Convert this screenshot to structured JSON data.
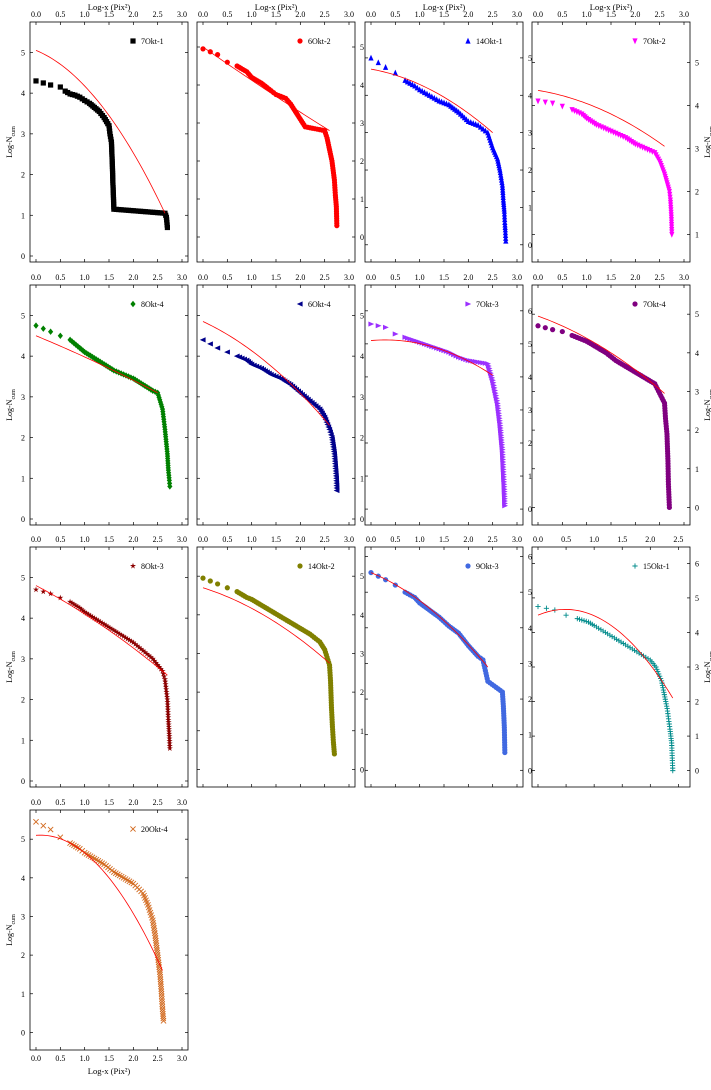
{
  "figure": {
    "top_axis_label": "Log-x (Pix²)",
    "bottom_axis_label": "Log-x (Pix²)",
    "y_axis_label_base": "Log-N",
    "y_axis_label_sub": "cum"
  },
  "chart_data": [
    {
      "type": "scatter",
      "title": "7Okt-1",
      "marker": "square",
      "color": "#000000",
      "xlim": [
        0,
        3
      ],
      "ylim": [
        0,
        5.6
      ],
      "yticks": [
        0,
        1,
        2,
        3,
        4,
        5
      ],
      "xticks": [
        0,
        0.5,
        1,
        1.5,
        2,
        2.5,
        3
      ],
      "ylabel": "Log-N",
      "ylabel_sub": "cum",
      "xlabel": "Log-x (Pix²)",
      "fit_color": "#ff0000",
      "fit": [
        [
          0,
          5.05
        ],
        [
          1.5,
          3.45
        ],
        [
          2.65,
          1.05
        ]
      ],
      "legend": "top-right",
      "x": [
        0,
        0.3,
        0.5,
        0.6,
        0.7,
        0.8,
        0.9,
        1.0,
        1.1,
        1.2,
        1.3,
        1.4,
        1.45,
        1.5,
        1.52,
        1.55,
        1.56,
        1.57,
        1.58,
        1.59,
        1.6,
        2.65,
        2.68,
        2.7
      ],
      "y": [
        4.3,
        4.2,
        4.15,
        4.05,
        3.98,
        3.95,
        3.9,
        3.82,
        3.75,
        3.65,
        3.55,
        3.4,
        3.3,
        3.2,
        3.0,
        2.8,
        2.5,
        2.2,
        1.8,
        1.5,
        1.15,
        1.05,
        0.95,
        0.7
      ]
    },
    {
      "type": "scatter",
      "title": "6Okt-2",
      "marker": "circle",
      "color": "#ff0000",
      "xlim": [
        0,
        3
      ],
      "ylim": [
        -0.5,
        5.5
      ],
      "yticks": [
        0,
        1,
        2,
        3,
        4,
        5
      ],
      "xticks": [
        0,
        0.5,
        1,
        1.5,
        2,
        2.5,
        3
      ],
      "ylabel": "",
      "xlabel": "Log-x (Pix²)",
      "fit_color": "#ff0000",
      "fit": [
        [
          0,
          5.0
        ],
        [
          1.5,
          3.7
        ],
        [
          2.6,
          2.8
        ]
      ],
      "legend": "top-right",
      "x": [
        0,
        0.3,
        0.5,
        0.7,
        0.9,
        1.0,
        1.2,
        1.4,
        1.5,
        1.6,
        1.7,
        1.8,
        1.9,
        2.0,
        2.05,
        2.1,
        2.5,
        2.55,
        2.6,
        2.65,
        2.7,
        2.72,
        2.74,
        2.75
      ],
      "y": [
        4.95,
        4.8,
        4.6,
        4.5,
        4.35,
        4.2,
        4.05,
        3.85,
        3.75,
        3.7,
        3.65,
        3.5,
        3.3,
        3.1,
        3.0,
        2.9,
        2.8,
        2.6,
        2.3,
        2.0,
        1.5,
        1.1,
        0.8,
        0.3
      ]
    },
    {
      "type": "scatter",
      "title": "14Okt-1",
      "marker": "triangle-up",
      "color": "#0000ff",
      "xlim": [
        0,
        3
      ],
      "ylim": [
        -0.3,
        5.8
      ],
      "yticks": [
        0,
        1,
        2,
        3,
        4,
        5
      ],
      "xticks": [
        0,
        0.5,
        1,
        1.5,
        2,
        2.5,
        3
      ],
      "ylabel": "",
      "xlabel": "Log-x (Pix²)",
      "fit_color": "#ff0000",
      "fit": [
        [
          0,
          4.7
        ],
        [
          1.5,
          3.95
        ],
        [
          2.5,
          3.0
        ]
      ],
      "legend": "top-right",
      "x": [
        0,
        0.3,
        0.5,
        0.7,
        0.9,
        1.0,
        1.2,
        1.4,
        1.6,
        1.8,
        2.0,
        2.2,
        2.3,
        2.4,
        2.5,
        2.6,
        2.65,
        2.7,
        2.72,
        2.74,
        2.75,
        2.76,
        2.77
      ],
      "y": [
        5.0,
        4.75,
        4.6,
        4.4,
        4.25,
        4.15,
        4.0,
        3.85,
        3.75,
        3.55,
        3.3,
        3.2,
        3.1,
        3.0,
        2.6,
        2.3,
        2.0,
        1.6,
        1.2,
        0.9,
        0.6,
        0.4,
        0.1
      ]
    },
    {
      "type": "scatter",
      "title": "7Okt-2",
      "marker": "triangle-down",
      "color": "#ff00ff",
      "xlim": [
        0,
        3
      ],
      "ylim": [
        0.5,
        5.8
      ],
      "yticks": [
        1,
        2,
        3,
        4,
        5
      ],
      "xticks": [
        0,
        0.5,
        1,
        1.5,
        2,
        2.5,
        3
      ],
      "ylabel": "Log-N",
      "ylabel_sub": "cum",
      "xlabel": "Log-x (Pix²)",
      "fit_color": "#ff0000",
      "fit": [
        [
          0,
          4.35
        ],
        [
          1.5,
          3.8
        ],
        [
          2.6,
          3.05
        ]
      ],
      "legend": "top-right",
      "x": [
        0,
        0.3,
        0.5,
        0.7,
        0.9,
        1.0,
        1.2,
        1.4,
        1.6,
        1.8,
        2.0,
        2.2,
        2.4,
        2.5,
        2.6,
        2.65,
        2.7,
        2.72,
        2.74,
        2.75
      ],
      "y": [
        4.1,
        4.05,
        3.98,
        3.9,
        3.8,
        3.7,
        3.55,
        3.45,
        3.35,
        3.25,
        3.1,
        3.0,
        2.9,
        2.7,
        2.4,
        2.2,
        2.0,
        1.8,
        1.4,
        1.0
      ]
    },
    {
      "type": "scatter",
      "title": "8Okt-4",
      "marker": "diamond",
      "color": "#008000",
      "xlim": [
        0,
        3
      ],
      "ylim": [
        0,
        5.6
      ],
      "yticks": [
        0,
        1,
        2,
        3,
        4,
        5
      ],
      "xticks": [
        0,
        0.5,
        1,
        1.5,
        2,
        2.5,
        3
      ],
      "ylabel": "Log-N",
      "ylabel_sub": "cum",
      "xlabel": "",
      "fit_color": "#ff0000",
      "fit": [
        [
          0,
          4.5
        ],
        [
          1.5,
          3.7
        ],
        [
          2.5,
          3.1
        ]
      ],
      "legend": "top-right",
      "x": [
        0,
        0.3,
        0.5,
        0.7,
        0.9,
        1.0,
        1.2,
        1.4,
        1.6,
        1.8,
        2.0,
        2.2,
        2.4,
        2.5,
        2.6,
        2.65,
        2.7,
        2.72,
        2.74,
        2.75
      ],
      "y": [
        4.75,
        4.6,
        4.5,
        4.4,
        4.2,
        4.1,
        3.95,
        3.8,
        3.65,
        3.55,
        3.45,
        3.3,
        3.15,
        3.1,
        2.7,
        2.2,
        1.6,
        1.2,
        0.95,
        0.8
      ]
    },
    {
      "type": "scatter",
      "title": "6Okt-4",
      "marker": "triangle-left",
      "color": "#00008b",
      "xlim": [
        0,
        3
      ],
      "ylim": [
        0,
        5.6
      ],
      "yticks": [
        0,
        1,
        2,
        3,
        4,
        5
      ],
      "xticks": [
        0,
        0.5,
        1,
        1.5,
        2,
        2.5,
        3
      ],
      "ylabel": "",
      "xlabel": "",
      "fit_color": "#ff0000",
      "fit": [
        [
          0,
          4.85
        ],
        [
          1.5,
          3.65
        ],
        [
          2.6,
          2.3
        ]
      ],
      "legend": "top-right",
      "x": [
        0,
        0.3,
        0.5,
        0.7,
        0.9,
        1.0,
        1.2,
        1.4,
        1.6,
        1.8,
        2.0,
        2.2,
        2.4,
        2.5,
        2.6,
        2.65,
        2.7,
        2.72,
        2.74,
        2.75
      ],
      "y": [
        4.4,
        4.2,
        4.1,
        4.0,
        3.9,
        3.8,
        3.7,
        3.55,
        3.45,
        3.3,
        3.1,
        2.9,
        2.7,
        2.5,
        2.2,
        2.0,
        1.6,
        1.3,
        1.0,
        0.7
      ]
    },
    {
      "type": "scatter",
      "title": "7Okt-3",
      "marker": "triangle-right",
      "color": "#9b30ff",
      "xlim": [
        0,
        3
      ],
      "ylim": [
        -0.3,
        6.6
      ],
      "yticks": [
        0,
        1,
        2,
        3,
        4,
        5,
        6
      ],
      "xticks": [
        0,
        0.5,
        1,
        1.5,
        2,
        2.5,
        3
      ],
      "ylabel": "",
      "xlabel": "",
      "fit_color": "#ff0000",
      "fit": [
        [
          0,
          5.1
        ],
        [
          1.5,
          4.8
        ],
        [
          2.5,
          4.05
        ]
      ],
      "legend": "top-right",
      "x": [
        0,
        0.3,
        0.5,
        0.7,
        0.9,
        1.0,
        1.2,
        1.4,
        1.6,
        1.8,
        2.0,
        2.2,
        2.4,
        2.5,
        2.6,
        2.65,
        2.7,
        2.72,
        2.74,
        2.75
      ],
      "y": [
        5.6,
        5.5,
        5.3,
        5.2,
        5.1,
        5.05,
        4.95,
        4.85,
        4.75,
        4.6,
        4.5,
        4.45,
        4.4,
        3.9,
        3.2,
        2.6,
        1.8,
        1.2,
        0.6,
        0.1
      ]
    },
    {
      "type": "scatter",
      "title": "7Okt-4",
      "marker": "circle",
      "color": "#800080",
      "xlim": [
        0,
        3
      ],
      "ylim": [
        -0.3,
        5.6
      ],
      "yticks": [
        0,
        1,
        2,
        3,
        4,
        5
      ],
      "xticks": [
        0,
        0.5,
        1,
        1.5,
        2,
        2.5,
        3
      ],
      "ylabel": "Log-N",
      "ylabel_sub": "cum",
      "xlabel": "",
      "fit_color": "#ff0000",
      "fit": [
        [
          0,
          4.95
        ],
        [
          1.5,
          4.0
        ],
        [
          2.6,
          2.95
        ]
      ],
      "legend": "top-right",
      "x": [
        0,
        0.3,
        0.5,
        0.7,
        0.9,
        1.0,
        1.2,
        1.4,
        1.6,
        1.8,
        2.0,
        2.2,
        2.4,
        2.5,
        2.6,
        2.62,
        2.65,
        2.67,
        2.68,
        2.7
      ],
      "y": [
        4.7,
        4.6,
        4.55,
        4.45,
        4.35,
        4.3,
        4.15,
        4.0,
        3.8,
        3.65,
        3.5,
        3.35,
        3.2,
        2.95,
        2.7,
        2.3,
        1.9,
        1.2,
        0.6,
        0.0
      ]
    },
    {
      "type": "scatter",
      "title": "8Okt-3",
      "marker": "star",
      "color": "#8b0000",
      "xlim": [
        0,
        3
      ],
      "ylim": [
        0,
        5.6
      ],
      "yticks": [
        0,
        1,
        2,
        3,
        4,
        5
      ],
      "xticks": [
        0,
        0.5,
        1,
        1.5,
        2,
        2.5,
        3
      ],
      "ylabel": "Log-N",
      "ylabel_sub": "cum",
      "xlabel": "",
      "fit_color": "#ff0000",
      "fit": [
        [
          0,
          4.8
        ],
        [
          1.5,
          3.7
        ],
        [
          2.7,
          2.6
        ]
      ],
      "legend": "top-right",
      "x": [
        0,
        0.3,
        0.5,
        0.7,
        0.9,
        1.0,
        1.2,
        1.4,
        1.6,
        1.8,
        2.0,
        2.2,
        2.4,
        2.5,
        2.6,
        2.65,
        2.7,
        2.72,
        2.74,
        2.75
      ],
      "y": [
        4.7,
        4.6,
        4.5,
        4.4,
        4.25,
        4.15,
        4.0,
        3.85,
        3.7,
        3.55,
        3.4,
        3.2,
        3.0,
        2.85,
        2.7,
        2.5,
        2.0,
        1.5,
        1.1,
        0.8
      ]
    },
    {
      "type": "scatter",
      "title": "14Okt-2",
      "marker": "circle",
      "color": "#808000",
      "xlim": [
        0,
        3
      ],
      "ylim": [
        -0.3,
        5.6
      ],
      "yticks": [
        0,
        1,
        2,
        3,
        4,
        5
      ],
      "xticks": [
        0,
        0.5,
        1,
        1.5,
        2,
        2.5,
        3
      ],
      "ylabel": "",
      "xlabel": "",
      "fit_color": "#ff0000",
      "fit": [
        [
          0,
          4.7
        ],
        [
          1.5,
          3.8
        ],
        [
          2.6,
          2.75
        ]
      ],
      "legend": "top-right",
      "x": [
        0,
        0.3,
        0.5,
        0.7,
        0.9,
        1.0,
        1.2,
        1.4,
        1.6,
        1.8,
        2.0,
        2.2,
        2.4,
        2.5,
        2.6,
        2.62,
        2.64,
        2.66,
        2.68,
        2.7
      ],
      "y": [
        4.95,
        4.8,
        4.7,
        4.6,
        4.45,
        4.4,
        4.25,
        4.1,
        3.95,
        3.8,
        3.65,
        3.5,
        3.3,
        3.1,
        2.7,
        2.3,
        1.6,
        1.1,
        0.7,
        0.4
      ]
    },
    {
      "type": "scatter",
      "title": "9Okt-3",
      "marker": "circle",
      "color": "#4169e1",
      "xlim": [
        0,
        3
      ],
      "ylim": [
        -0.3,
        6.1
      ],
      "yticks": [
        0,
        1,
        2,
        3,
        4,
        5,
        6
      ],
      "xticks": [
        0,
        0.5,
        1,
        1.5,
        2,
        2.5,
        3
      ],
      "ylabel": "",
      "xlabel": "",
      "fit_color": "#ff0000",
      "fit": [
        [
          0,
          5.55
        ],
        [
          1.5,
          4.2
        ],
        [
          2.4,
          2.9
        ]
      ],
      "legend": "top-right",
      "x": [
        0,
        0.3,
        0.5,
        0.7,
        0.9,
        1.0,
        1.2,
        1.4,
        1.6,
        1.8,
        2.0,
        2.2,
        2.3,
        2.35,
        2.4,
        2.7,
        2.72,
        2.74,
        2.75
      ],
      "y": [
        5.55,
        5.35,
        5.2,
        5.0,
        4.85,
        4.7,
        4.5,
        4.3,
        4.05,
        3.85,
        3.5,
        3.2,
        3.1,
        2.8,
        2.5,
        2.2,
        1.8,
        1.2,
        0.5
      ]
    },
    {
      "type": "scatter",
      "title": "15Okt-1",
      "marker": "plus",
      "color": "#008b8b",
      "xlim": [
        0,
        2.6
      ],
      "ylim": [
        -0.3,
        6.3
      ],
      "yticks": [
        0,
        1,
        2,
        3,
        4,
        5,
        6
      ],
      "xticks": [
        0,
        0.5,
        1,
        1.5,
        2,
        2.5
      ],
      "ylabel": "Log-N",
      "ylabel_sub": "cum",
      "xlabel": "",
      "fit_color": "#ff0000",
      "fit": [
        [
          0,
          4.5
        ],
        [
          1.6,
          3.8
        ],
        [
          2.4,
          2.1
        ]
      ],
      "legend": "top-right",
      "x": [
        0,
        0.3,
        0.5,
        0.7,
        0.9,
        1.0,
        1.2,
        1.4,
        1.6,
        1.8,
        2.0,
        2.1,
        2.2,
        2.25,
        2.3,
        2.35,
        2.38,
        2.4
      ],
      "y": [
        4.75,
        4.65,
        4.5,
        4.4,
        4.3,
        4.2,
        4.0,
        3.8,
        3.6,
        3.4,
        3.2,
        3.0,
        2.6,
        2.2,
        1.8,
        1.2,
        0.8,
        0.0
      ]
    },
    {
      "type": "scatter",
      "title": "20Okt-4",
      "marker": "cross",
      "color": "#d2691e",
      "xlim": [
        0,
        3
      ],
      "ylim": [
        -0.3,
        5.6
      ],
      "yticks": [
        0,
        1,
        2,
        3,
        4,
        5
      ],
      "xticks": [
        0,
        0.5,
        1,
        1.5,
        2,
        2.5,
        3
      ],
      "ylabel": "Log-N",
      "ylabel_sub": "cum",
      "xlabel": "Log-x (Pix²)",
      "fit_color": "#ff0000",
      "fit": [
        [
          0,
          5.1
        ],
        [
          1.5,
          4.0
        ],
        [
          2.6,
          1.6
        ]
      ],
      "legend": "top-right",
      "x": [
        0,
        0.3,
        0.5,
        0.7,
        0.9,
        1.0,
        1.2,
        1.4,
        1.6,
        1.8,
        2.0,
        2.2,
        2.3,
        2.4,
        2.45,
        2.5,
        2.55,
        2.58,
        2.6,
        2.62
      ],
      "y": [
        5.45,
        5.25,
        5.05,
        4.9,
        4.75,
        4.65,
        4.5,
        4.35,
        4.15,
        4.0,
        3.85,
        3.6,
        3.3,
        2.9,
        2.5,
        2.0,
        1.5,
        1.0,
        0.6,
        0.3
      ]
    }
  ]
}
